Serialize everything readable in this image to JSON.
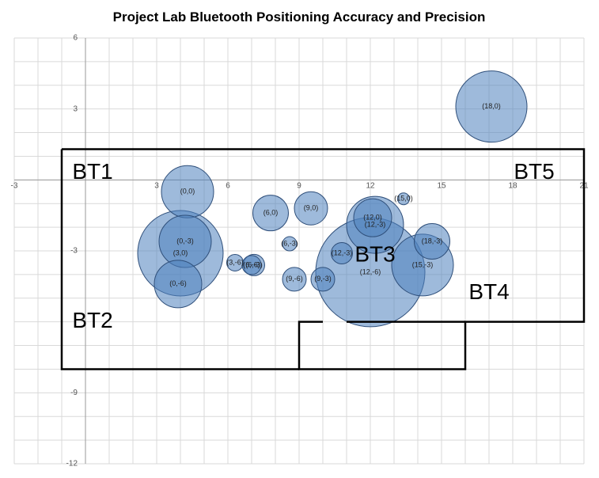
{
  "chart_data": {
    "type": "bubble",
    "title": "Project Lab Bluetooth Positioning Accuracy and Precision",
    "xlim": [
      -3,
      21
    ],
    "ylim": [
      -12,
      6
    ],
    "x_ticks": [
      "-3",
      "3",
      "6",
      "9",
      "12",
      "15",
      "18",
      "21"
    ],
    "y_ticks": [
      "6",
      "3",
      "-3",
      "-9",
      "-12"
    ],
    "grid": true,
    "room_outline": [
      [
        -1,
        1.3
      ],
      [
        21,
        1.3
      ],
      [
        21,
        -6
      ],
      [
        16,
        -6
      ],
      [
        16,
        -8
      ],
      [
        9,
        -8
      ],
      [
        9,
        -6
      ],
      [
        10,
        -6
      ],
      [
        11,
        -6
      ],
      [
        16,
        -6
      ],
      [
        16,
        -8
      ],
      [
        9,
        -8
      ],
      [
        9,
        -8
      ],
      [
        -1,
        -8
      ],
      [
        -1,
        1.3
      ]
    ],
    "beacon_labels": [
      {
        "text": "BT1",
        "x": 0.3,
        "y": 0.3
      },
      {
        "text": "BT2",
        "x": 0.3,
        "y": -6.0
      },
      {
        "text": "BT3",
        "x": 12.2,
        "y": -3.2
      },
      {
        "text": "BT4",
        "x": 17.0,
        "y": -4.8
      },
      {
        "text": "BT5",
        "x": 18.9,
        "y": 0.3
      }
    ],
    "bubbles": [
      {
        "label": "(18,0)",
        "x": 17.1,
        "y": 3.1,
        "r": 1.5
      },
      {
        "label": "(0,0)",
        "x": 4.3,
        "y": -0.5,
        "r": 1.1
      },
      {
        "label": "(0,-3)",
        "x": 4.2,
        "y": -2.6,
        "r": 1.1
      },
      {
        "label": "(3,0)",
        "x": 4.0,
        "y": -3.1,
        "r": 1.8
      },
      {
        "label": "(0,-6)",
        "x": 3.9,
        "y": -4.4,
        "r": 1.0
      },
      {
        "label": "(3,-6)",
        "x": 6.3,
        "y": -3.5,
        "r": 0.35
      },
      {
        "label": "(6,-3)",
        "x": 7.1,
        "y": -3.6,
        "r": 0.45
      },
      {
        "label": "(6,-6)",
        "x": 7.0,
        "y": -3.6,
        "r": 0.4
      },
      {
        "label": "(6,0)",
        "x": 7.8,
        "y": -1.4,
        "r": 0.75
      },
      {
        "label": "(9,0)",
        "x": 9.5,
        "y": -1.2,
        "r": 0.7
      },
      {
        "label": "(6,-3)",
        "x": 8.6,
        "y": -2.7,
        "r": 0.3
      },
      {
        "label": "(9,-6)",
        "x": 8.8,
        "y": -4.2,
        "r": 0.5
      },
      {
        "label": "(9,-3)",
        "x": 10.0,
        "y": -4.2,
        "r": 0.5
      },
      {
        "label": "(12,-3)",
        "x": 10.8,
        "y": -3.1,
        "r": 0.45
      },
      {
        "label": "(12,-6)",
        "x": 12.0,
        "y": -3.9,
        "r": 2.3
      },
      {
        "label": "(12,0)",
        "x": 12.1,
        "y": -1.6,
        "r": 0.8
      },
      {
        "label": "(12,-3)",
        "x": 12.2,
        "y": -1.9,
        "r": 1.2
      },
      {
        "label": "(15,0)",
        "x": 13.4,
        "y": -0.8,
        "r": 0.25
      },
      {
        "label": "(18,-3)",
        "x": 14.6,
        "y": -2.6,
        "r": 0.75
      },
      {
        "label": "(15,-3)",
        "x": 14.2,
        "y": -3.6,
        "r": 1.3
      }
    ]
  }
}
